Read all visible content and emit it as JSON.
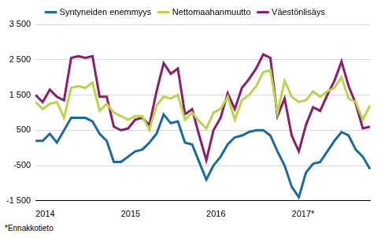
{
  "chart_data": {
    "type": "line",
    "note": "*Ennakkotieto",
    "categories": [
      "2014",
      null,
      null,
      null,
      null,
      null,
      null,
      null,
      null,
      null,
      null,
      null,
      "2015",
      null,
      null,
      null,
      null,
      null,
      null,
      null,
      null,
      null,
      null,
      null,
      "2016",
      null,
      null,
      null,
      null,
      null,
      null,
      null,
      null,
      null,
      null,
      null,
      "2017*",
      null,
      null,
      null,
      null,
      null,
      null,
      null,
      null,
      null,
      null,
      null
    ],
    "series": [
      {
        "name": "Syntyneiden enemmyys",
        "color": "#1a6aa2",
        "values": [
          200,
          200,
          400,
          150,
          500,
          850,
          850,
          850,
          750,
          400,
          200,
          -400,
          -400,
          -250,
          -100,
          -50,
          150,
          400,
          950,
          700,
          750,
          150,
          100,
          -400,
          -900,
          -500,
          -250,
          100,
          300,
          350,
          450,
          500,
          500,
          350,
          -100,
          -500,
          -1100,
          -1400,
          -700,
          -450,
          -400,
          -100,
          200,
          450,
          350,
          -50,
          -250,
          -600
        ]
      },
      {
        "name": "Nettomaahanmuutto",
        "color": "#b8d54a",
        "values": [
          1300,
          1100,
          1250,
          1300,
          850,
          1700,
          1750,
          1700,
          1850,
          1050,
          1250,
          1000,
          900,
          800,
          900,
          900,
          500,
          1200,
          1450,
          1400,
          1500,
          800,
          1000,
          750,
          550,
          1000,
          1100,
          1450,
          800,
          1350,
          1500,
          1750,
          2150,
          2200,
          1000,
          1900,
          1450,
          1300,
          1350,
          1600,
          1450,
          1600,
          1700,
          2000,
          1400,
          1300,
          800,
          1200
        ]
      },
      {
        "name": "Väestönlisäys",
        "color": "#8c1c6c",
        "values": [
          1500,
          1300,
          1650,
          1450,
          1350,
          2550,
          2600,
          2550,
          2600,
          1450,
          1450,
          600,
          500,
          550,
          800,
          850,
          650,
          1600,
          2400,
          2100,
          2250,
          950,
          1100,
          350,
          -350,
          500,
          850,
          1550,
          1100,
          1700,
          1950,
          2250,
          2650,
          2550,
          900,
          1400,
          350,
          -100,
          650,
          1150,
          1050,
          1500,
          1900,
          2450,
          1750,
          1250,
          550,
          600
        ]
      }
    ],
    "ylim": [
      -1500,
      3500
    ],
    "yticks": [
      {
        "value": -1500,
        "label": "-1 500"
      },
      {
        "value": -500,
        "label": "-500"
      },
      500,
      {
        "value": 1500,
        "label": "1 500"
      },
      {
        "value": 2500,
        "label": "2 500"
      },
      {
        "value": 3500,
        "label": "3 500"
      }
    ],
    "grid": true,
    "legend": "top"
  }
}
